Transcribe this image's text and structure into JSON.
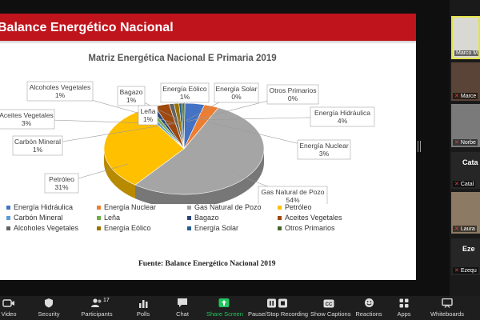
{
  "slide": {
    "title": "Balance Energético Nacional",
    "source": "Fuente: Balance Energético Nacional 2019"
  },
  "chart_data": {
    "type": "pie",
    "title": "Matriz Energética Nacional E Primaria 2019",
    "categories": [
      "Energía Hidráulica",
      "Energía Nuclear",
      "Gas Natural de Pozo",
      "Petróleo",
      "Carbón Mineral",
      "Leña",
      "Bagazo",
      "Aceites Vegetales",
      "Alcoholes Vegetales",
      "Energía Eólico",
      "Energía Solar",
      "Otros Primarios"
    ],
    "values": [
      4,
      3,
      54,
      31,
      1,
      1,
      1,
      3,
      1,
      1,
      0,
      0
    ],
    "value_labels": [
      "4%",
      "3%",
      "54%",
      "31%",
      "1%",
      "1%",
      "1%",
      "3%",
      "1%",
      "1%",
      "0%",
      "0%"
    ],
    "colors": [
      "#4472c4",
      "#ed7d31",
      "#a5a5a5",
      "#ffc000",
      "#5b9bd5",
      "#70ad47",
      "#264478",
      "#9e480e",
      "#636363",
      "#997300",
      "#255e91",
      "#43682b"
    ],
    "style": "3d-pie",
    "legend_position": "bottom"
  },
  "gallery": {
    "tiles": [
      {
        "name": "Marco M"
      },
      {
        "name": "Marce"
      },
      {
        "name": "Norbe"
      },
      {
        "name": "Catal",
        "title": "Cata"
      },
      {
        "name": "Laura"
      },
      {
        "name": "Ezequ",
        "title": "Eze"
      }
    ]
  },
  "toolbar": {
    "participants_count": "17",
    "buttons": [
      {
        "label": "Video",
        "icon": "video-icon"
      },
      {
        "label": "Security",
        "icon": "shield-icon"
      },
      {
        "label": "Participants",
        "icon": "participants-icon"
      },
      {
        "label": "Polls",
        "icon": "polls-icon"
      },
      {
        "label": "Chat",
        "icon": "chat-icon"
      },
      {
        "label": "Share Screen",
        "icon": "share-screen-icon"
      },
      {
        "label": "Pause/Stop Recording",
        "icon": "pause-icon"
      },
      {
        "label": "Show Captions",
        "icon": "captions-icon"
      },
      {
        "label": "Reactions",
        "icon": "reactions-icon"
      },
      {
        "label": "Apps",
        "icon": "apps-icon"
      },
      {
        "label": "Whiteboards",
        "icon": "whiteboard-icon"
      }
    ]
  }
}
